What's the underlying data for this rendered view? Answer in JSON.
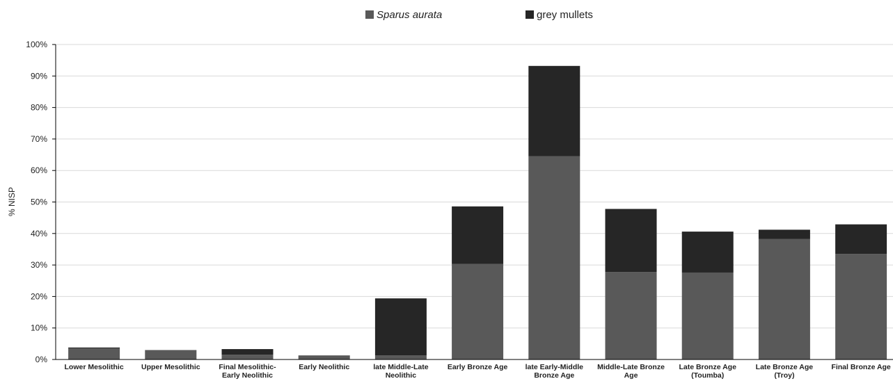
{
  "chart_data": {
    "type": "bar",
    "stacked": true,
    "categories": [
      [
        "Lower Mesolithic"
      ],
      [
        "Upper Mesolithic"
      ],
      [
        "Final Mesolithic-",
        "Early Neolithic"
      ],
      [
        "Early Neolithic"
      ],
      [
        "late Middle-Late",
        "Neolithic"
      ],
      [
        "Early Bronze Age"
      ],
      [
        "late Early-Middle",
        "Bronze Age"
      ],
      [
        "Middle-Late Bronze",
        "Age"
      ],
      [
        "Late Bronze Age",
        "(Toumba)"
      ],
      [
        "Late Bronze Age",
        "(Troy)"
      ],
      [
        "Final Bronze Age"
      ]
    ],
    "series": [
      {
        "name": "Sparus aurata",
        "color": "#595959",
        "values": [
          3.5,
          3.0,
          1.5,
          1.3,
          1.3,
          30.3,
          64.5,
          27.8,
          27.6,
          38.3,
          33.5
        ]
      },
      {
        "name": "grey mullets",
        "color": "#262626",
        "values": [
          0.3,
          0.0,
          1.8,
          0.0,
          18.1,
          18.3,
          28.7,
          20.0,
          13.0,
          2.9,
          9.4
        ]
      }
    ],
    "ylabel": "% NISP",
    "ylim": [
      0,
      100
    ],
    "yticks": [
      "0%",
      "10%",
      "20%",
      "30%",
      "40%",
      "50%",
      "60%",
      "70%",
      "80%",
      "90%",
      "100%"
    ],
    "grid": true,
    "legend_position": "top-center"
  }
}
